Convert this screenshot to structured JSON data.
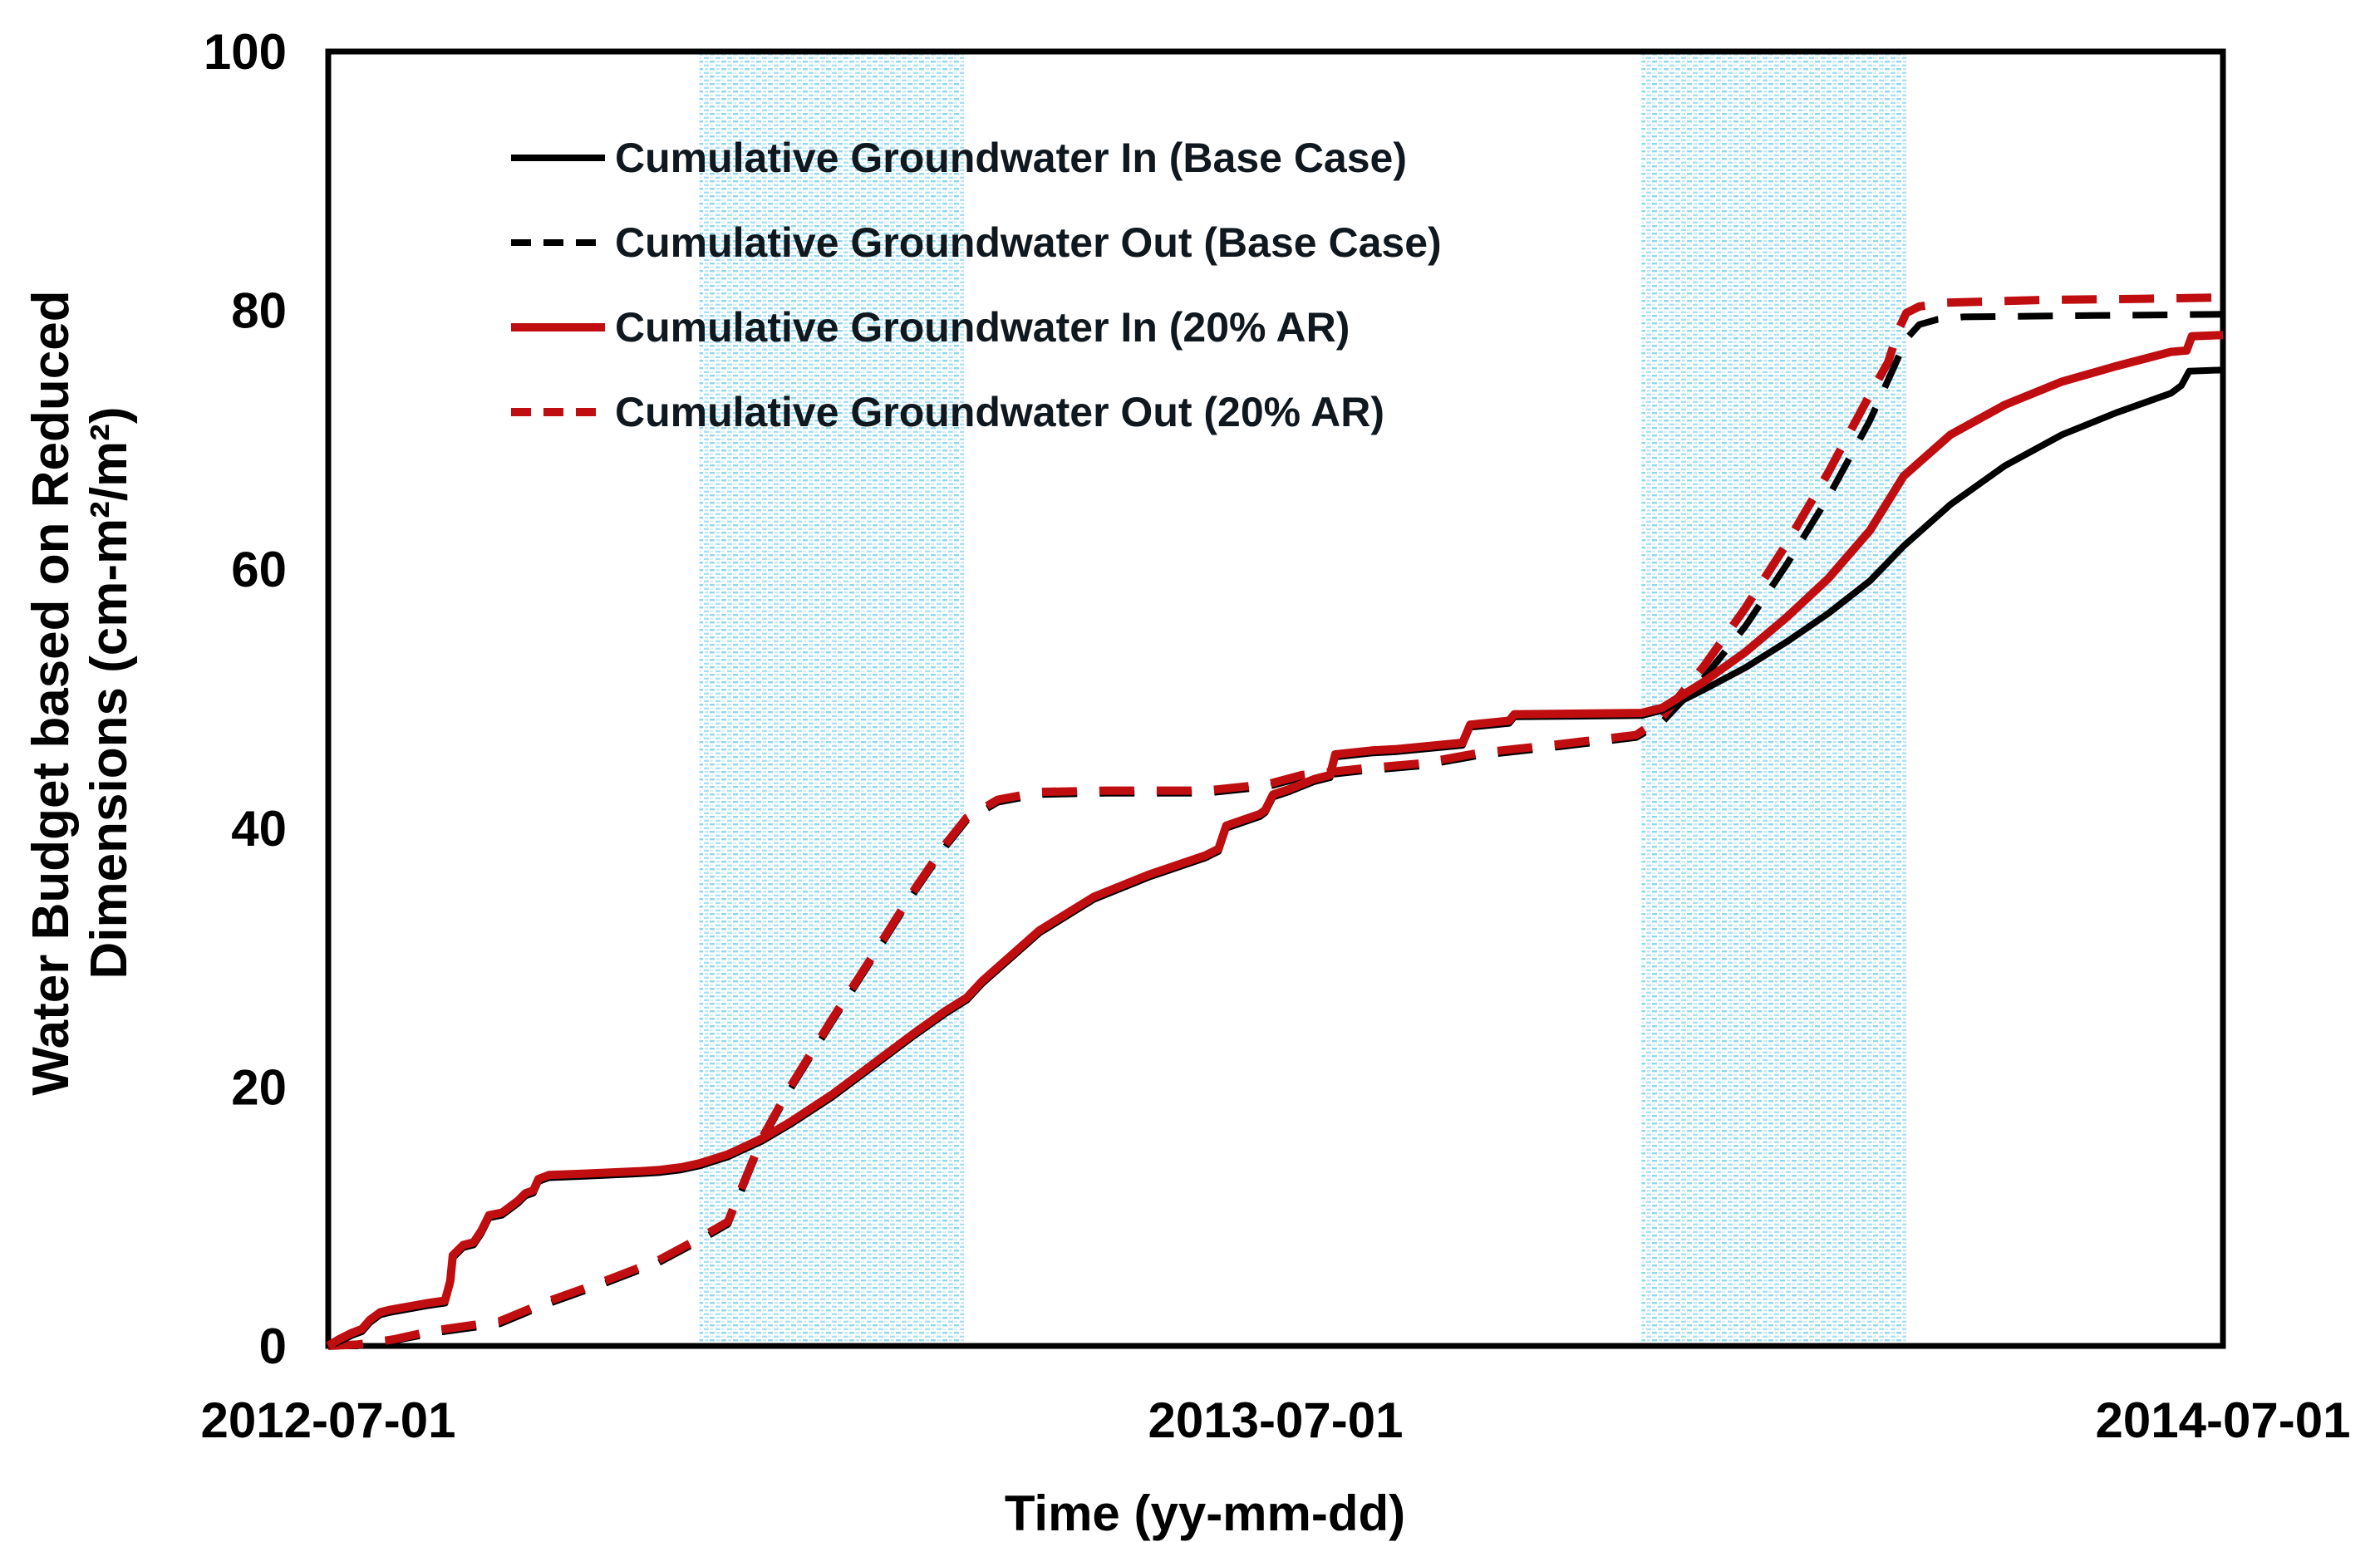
{
  "figure": {
    "x_axis_title": "Time (yy-mm-dd)",
    "y_axis_title_line1": "Water Budget based on Reduced",
    "y_axis_title_line2": "Dimensions (cm-m²/m²)"
  },
  "chart_data": {
    "type": "line",
    "title": "",
    "xlabel": "Time (yy-mm-dd)",
    "ylabel": "Water Budget based on Reduced Dimensions (cm-m²/m²)",
    "x_axis": {
      "unit": "date",
      "start_label": "2012-07-01",
      "end_label": "2014-07-01",
      "span_days": 730,
      "ticks": [
        {
          "label": "2012-07-01",
          "day": 0
        },
        {
          "label": "2013-07-01",
          "day": 365
        },
        {
          "label": "2014-07-01",
          "day": 730
        }
      ]
    },
    "y_axis": {
      "min": 0,
      "max": 100,
      "tick_labels": [
        "0",
        "20",
        "40",
        "60",
        "80",
        "100"
      ],
      "tick_values": [
        0,
        20,
        40,
        60,
        80,
        100
      ]
    },
    "grid": false,
    "legend_position": "top-left-inside",
    "highlight_bands": [
      {
        "start_day": 143,
        "end_day": 245
      },
      {
        "start_day": 506,
        "end_day": 608
      }
    ],
    "colors": {
      "base_case": "#000000",
      "ar_case": "#bf0d10",
      "band_dot": "#5ec6e8",
      "band_dot_light": "#a8e0f3",
      "legend_text": "#10181f"
    },
    "series": [
      {
        "key": "gw_in_base",
        "label": "Cumulative Groundwater In (Base Case)",
        "color": "#000000",
        "line_style": "solid",
        "points": [
          [
            0,
            0
          ],
          [
            4,
            0.3
          ],
          [
            9,
            0.8
          ],
          [
            13,
            1.1
          ],
          [
            16,
            1.8
          ],
          [
            20,
            2.4
          ],
          [
            24,
            2.6
          ],
          [
            38,
            3.1
          ],
          [
            45,
            3.3
          ],
          [
            47,
            4.8
          ],
          [
            48,
            6.8
          ],
          [
            52,
            7.6
          ],
          [
            56,
            7.8
          ],
          [
            59,
            8.7
          ],
          [
            62,
            9.9
          ],
          [
            67,
            10.1
          ],
          [
            73,
            11.0
          ],
          [
            76,
            11.6
          ],
          [
            79,
            11.8
          ],
          [
            81,
            12.7
          ],
          [
            85,
            13.0
          ],
          [
            98,
            13.1
          ],
          [
            120,
            13.3
          ],
          [
            128,
            13.4
          ],
          [
            136,
            13.6
          ],
          [
            143,
            13.9
          ],
          [
            154,
            14.6
          ],
          [
            167,
            15.8
          ],
          [
            178,
            17.1
          ],
          [
            194,
            19.2
          ],
          [
            210,
            21.6
          ],
          [
            226,
            24.0
          ],
          [
            238,
            25.7
          ],
          [
            246,
            26.7
          ],
          [
            252,
            28.0
          ],
          [
            274,
            31.9
          ],
          [
            295,
            34.5
          ],
          [
            316,
            36.2
          ],
          [
            338,
            37.7
          ],
          [
            343,
            38.2
          ],
          [
            346,
            40.0
          ],
          [
            359,
            40.9
          ],
          [
            361,
            41.2
          ],
          [
            364,
            42.4
          ],
          [
            370,
            42.8
          ],
          [
            380,
            43.6
          ],
          [
            386,
            43.9
          ],
          [
            388,
            45.5
          ],
          [
            402,
            45.8
          ],
          [
            411,
            45.9
          ],
          [
            437,
            46.4
          ],
          [
            440,
            47.8
          ],
          [
            455,
            48.1
          ],
          [
            457,
            48.6
          ],
          [
            506,
            48.7
          ],
          [
            514,
            49.1
          ],
          [
            530,
            50.7
          ],
          [
            546,
            52.4
          ],
          [
            562,
            54.4
          ],
          [
            578,
            56.6
          ],
          [
            594,
            59.1
          ],
          [
            607,
            61.8
          ],
          [
            625,
            65.0
          ],
          [
            646,
            68.0
          ],
          [
            668,
            70.4
          ],
          [
            689,
            72.1
          ],
          [
            710,
            73.6
          ],
          [
            714,
            74.2
          ],
          [
            717,
            75.3
          ],
          [
            730,
            75.4
          ]
        ]
      },
      {
        "key": "gw_out_base",
        "label": "Cumulative Groundwater Out (Base Case)",
        "color": "#000000",
        "line_style": "dashed",
        "points": [
          [
            0,
            0
          ],
          [
            11,
            0
          ],
          [
            25,
            0.4
          ],
          [
            41,
            1.0
          ],
          [
            66,
            1.7
          ],
          [
            84,
            3.2
          ],
          [
            105,
            4.7
          ],
          [
            127,
            6.4
          ],
          [
            142,
            8.0
          ],
          [
            154,
            9.4
          ],
          [
            167,
            15.8
          ],
          [
            178,
            19.8
          ],
          [
            194,
            25.0
          ],
          [
            210,
            30.0
          ],
          [
            226,
            35.1
          ],
          [
            238,
            38.6
          ],
          [
            246,
            40.6
          ],
          [
            258,
            42.0
          ],
          [
            274,
            42.6
          ],
          [
            300,
            42.7
          ],
          [
            338,
            42.7
          ],
          [
            362,
            43.2
          ],
          [
            375,
            43.9
          ],
          [
            398,
            44.4
          ],
          [
            421,
            44.8
          ],
          [
            443,
            45.6
          ],
          [
            475,
            46.3
          ],
          [
            504,
            47.0
          ],
          [
            514,
            48.2
          ],
          [
            530,
            51.6
          ],
          [
            546,
            55.6
          ],
          [
            562,
            60.4
          ],
          [
            578,
            65.6
          ],
          [
            594,
            71.5
          ],
          [
            603,
            75.5
          ],
          [
            608,
            77.8
          ],
          [
            613,
            78.9
          ],
          [
            620,
            79.3
          ],
          [
            630,
            79.5
          ],
          [
            680,
            79.6
          ],
          [
            730,
            79.7
          ]
        ]
      },
      {
        "key": "gw_in_ar",
        "label": "Cumulative Groundwater In (20% AR)",
        "color": "#bf0d10",
        "line_style": "solid",
        "points": [
          [
            0,
            0
          ],
          [
            4,
            0.5
          ],
          [
            9,
            1.0
          ],
          [
            13,
            1.3
          ],
          [
            16,
            2.0
          ],
          [
            20,
            2.6
          ],
          [
            24,
            2.8
          ],
          [
            38,
            3.3
          ],
          [
            45,
            3.5
          ],
          [
            47,
            5.0
          ],
          [
            48,
            7.0
          ],
          [
            52,
            7.8
          ],
          [
            56,
            8.0
          ],
          [
            59,
            8.9
          ],
          [
            62,
            10.1
          ],
          [
            67,
            10.3
          ],
          [
            73,
            11.2
          ],
          [
            76,
            11.8
          ],
          [
            79,
            12.0
          ],
          [
            81,
            12.9
          ],
          [
            85,
            13.2
          ],
          [
            98,
            13.3
          ],
          [
            120,
            13.5
          ],
          [
            128,
            13.6
          ],
          [
            136,
            13.8
          ],
          [
            143,
            14.1
          ],
          [
            154,
            14.8
          ],
          [
            167,
            16.0
          ],
          [
            178,
            17.3
          ],
          [
            194,
            19.4
          ],
          [
            210,
            21.8
          ],
          [
            226,
            24.2
          ],
          [
            238,
            25.9
          ],
          [
            246,
            26.9
          ],
          [
            252,
            28.2
          ],
          [
            274,
            32.1
          ],
          [
            295,
            34.7
          ],
          [
            316,
            36.4
          ],
          [
            338,
            37.9
          ],
          [
            343,
            38.4
          ],
          [
            346,
            40.2
          ],
          [
            359,
            41.1
          ],
          [
            361,
            41.4
          ],
          [
            364,
            42.6
          ],
          [
            370,
            43.0
          ],
          [
            380,
            43.8
          ],
          [
            386,
            44.1
          ],
          [
            388,
            45.7
          ],
          [
            402,
            46.0
          ],
          [
            411,
            46.1
          ],
          [
            437,
            46.6
          ],
          [
            440,
            48.0
          ],
          [
            455,
            48.3
          ],
          [
            457,
            48.8
          ],
          [
            506,
            48.9
          ],
          [
            514,
            49.3
          ],
          [
            530,
            51.3
          ],
          [
            546,
            53.6
          ],
          [
            562,
            56.3
          ],
          [
            578,
            59.3
          ],
          [
            594,
            63.0
          ],
          [
            607,
            67.2
          ],
          [
            625,
            70.4
          ],
          [
            646,
            72.7
          ],
          [
            668,
            74.5
          ],
          [
            689,
            75.7
          ],
          [
            710,
            76.8
          ],
          [
            716,
            76.9
          ],
          [
            718,
            78.0
          ],
          [
            730,
            78.1
          ]
        ]
      },
      {
        "key": "gw_out_ar",
        "label": "Cumulative Groundwater Out (20% AR)",
        "color": "#bf0d10",
        "line_style": "dashed",
        "points": [
          [
            0,
            0
          ],
          [
            11,
            0.1
          ],
          [
            25,
            0.5
          ],
          [
            41,
            1.2
          ],
          [
            66,
            1.9
          ],
          [
            84,
            3.4
          ],
          [
            105,
            4.9
          ],
          [
            127,
            6.6
          ],
          [
            142,
            8.2
          ],
          [
            154,
            9.6
          ],
          [
            167,
            16.0
          ],
          [
            178,
            20.0
          ],
          [
            194,
            25.2
          ],
          [
            210,
            30.2
          ],
          [
            226,
            35.3
          ],
          [
            238,
            38.8
          ],
          [
            246,
            40.8
          ],
          [
            258,
            42.2
          ],
          [
            274,
            42.8
          ],
          [
            300,
            42.9
          ],
          [
            338,
            42.9
          ],
          [
            362,
            43.4
          ],
          [
            375,
            44.1
          ],
          [
            398,
            44.6
          ],
          [
            421,
            45.0
          ],
          [
            443,
            45.8
          ],
          [
            475,
            46.5
          ],
          [
            504,
            47.2
          ],
          [
            514,
            48.6
          ],
          [
            530,
            52.5
          ],
          [
            546,
            57.0
          ],
          [
            562,
            62.0
          ],
          [
            578,
            67.5
          ],
          [
            594,
            73.5
          ],
          [
            601,
            76.0
          ],
          [
            605,
            78.5
          ],
          [
            608,
            79.8
          ],
          [
            613,
            80.3
          ],
          [
            623,
            80.6
          ],
          [
            660,
            80.8
          ],
          [
            700,
            80.9
          ],
          [
            730,
            81.0
          ]
        ]
      }
    ]
  }
}
